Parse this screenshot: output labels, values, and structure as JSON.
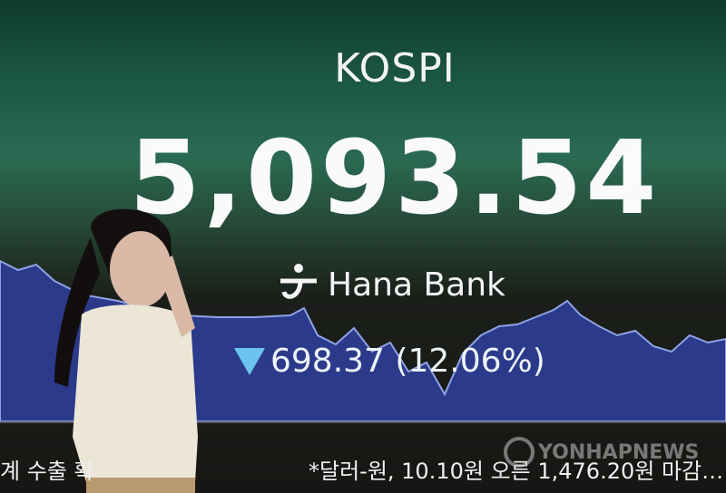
{
  "board": {
    "index_name": "KOSPI",
    "index_value": "5,093.54",
    "brand": "Hana Bank",
    "change_direction_icon": "down-triangle-icon",
    "change_text": "698.37 (12.06%)",
    "ticker_left": "계 수출 확",
    "ticker_right": "*달러-원, 10.10원 오른 1,476.20원 마감…"
  },
  "watermark": "YONHAPNEWS",
  "colors": {
    "down": "#6cc4ee",
    "chart_fill": "#2e3c8c"
  }
}
